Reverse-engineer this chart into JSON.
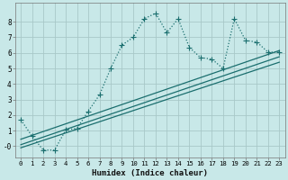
{
  "background_color": "#c8e8e8",
  "grid_color": "#a8c8c8",
  "line_color": "#1a6e6e",
  "xlabel": "Humidex (Indice chaleur)",
  "xlim": [
    -0.5,
    23.5
  ],
  "ylim": [
    -0.7,
    9.2
  ],
  "yticks": [
    0,
    1,
    2,
    3,
    4,
    5,
    6,
    7,
    8
  ],
  "ytick_labels": [
    "-0",
    "1",
    "2",
    "3",
    "4",
    "5",
    "6",
    "7",
    "8"
  ],
  "xticks": [
    0,
    1,
    2,
    3,
    4,
    5,
    6,
    7,
    8,
    9,
    10,
    11,
    12,
    13,
    14,
    15,
    16,
    17,
    18,
    19,
    20,
    21,
    22,
    23
  ],
  "xtick_labels": [
    "0",
    "1",
    "2",
    "3",
    "4",
    "5",
    "6",
    "7",
    "8",
    "9",
    "10",
    "11",
    "12",
    "13",
    "14",
    "15",
    "16",
    "17",
    "18",
    "19",
    "20",
    "21",
    "22",
    "23"
  ],
  "line1_x": [
    0,
    1,
    2,
    3,
    4,
    5,
    6,
    7,
    8,
    9,
    10,
    11,
    12,
    13,
    14,
    15,
    16,
    17,
    18,
    19,
    20,
    21,
    22,
    23
  ],
  "line1_y": [
    1.7,
    0.65,
    -0.25,
    -0.25,
    1.05,
    1.15,
    2.25,
    3.3,
    5.0,
    6.5,
    7.0,
    8.2,
    8.55,
    7.3,
    8.2,
    6.35,
    5.7,
    5.6,
    5.0,
    8.2,
    6.8,
    6.7,
    6.05,
    6.05
  ],
  "line2_x": [
    0,
    23
  ],
  "line2_y": [
    0.45,
    6.15
  ],
  "line3_x": [
    0,
    23
  ],
  "line3_y": [
    0.1,
    5.75
  ],
  "line4_x": [
    0,
    23
  ],
  "line4_y": [
    -0.1,
    5.4
  ],
  "marker_size": 2.5,
  "line_width": 0.9,
  "tick_fontsize": 5.2,
  "xlabel_fontsize": 6.5
}
